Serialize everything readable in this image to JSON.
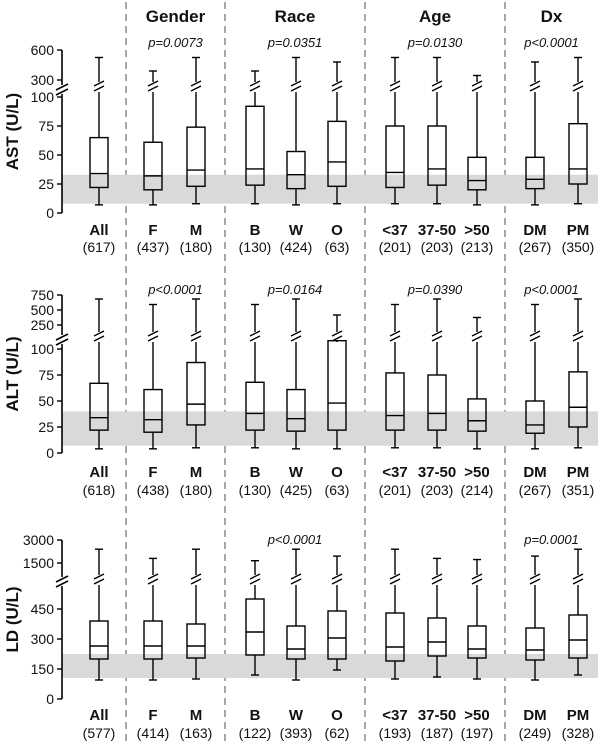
{
  "chart_data": {
    "type": "box",
    "group_headers": [
      "Gender",
      "Race",
      "Age",
      "Dx"
    ],
    "reference_band_color": "#d9d9d9",
    "panels": [
      {
        "ylabel": "AST (U/L)",
        "y_ticks_upper": [
          "600",
          "300"
        ],
        "y_ticks_lower": [
          "100",
          "75",
          "50",
          "25",
          "0"
        ],
        "y_lower_range": [
          0,
          100
        ],
        "y_upper_range": [
          200,
          600
        ],
        "reference_range": [
          8,
          33
        ],
        "pvalues": [
          "p=0.0073",
          "p=0.0351",
          "p=0.0130",
          "p<0.0001"
        ],
        "boxes": [
          {
            "label": "All",
            "n": "(617)",
            "whisker_low": 7,
            "q1": 22,
            "median": 34,
            "q3": 65,
            "whisker_high": 500
          },
          {
            "label": "F",
            "n": "(437)",
            "whisker_low": 7,
            "q1": 20,
            "median": 32,
            "q3": 61,
            "whisker_high": 320
          },
          {
            "label": "M",
            "n": "(180)",
            "whisker_low": 8,
            "q1": 23,
            "median": 37,
            "q3": 74,
            "whisker_high": 500
          },
          {
            "label": "B",
            "n": "(130)",
            "whisker_low": 8,
            "q1": 24,
            "median": 38,
            "q3": 92,
            "whisker_high": 320
          },
          {
            "label": "W",
            "n": "(424)",
            "whisker_low": 7,
            "q1": 21,
            "median": 33,
            "q3": 53,
            "whisker_high": 500
          },
          {
            "label": "O",
            "n": "(63)",
            "whisker_low": 8,
            "q1": 23,
            "median": 44,
            "q3": 79,
            "whisker_high": 440
          },
          {
            "label": "<37",
            "n": "(201)",
            "whisker_low": 8,
            "q1": 22,
            "median": 35,
            "q3": 75,
            "whisker_high": 500
          },
          {
            "label": "37-50",
            "n": "(203)",
            "whisker_low": 8,
            "q1": 24,
            "median": 38,
            "q3": 75,
            "whisker_high": 500
          },
          {
            "label": ">50",
            "n": "(213)",
            "whisker_low": 7,
            "q1": 20,
            "median": 28,
            "q3": 48,
            "whisker_high": 260
          },
          {
            "label": "DM",
            "n": "(267)",
            "whisker_low": 7,
            "q1": 21,
            "median": 29,
            "q3": 48,
            "whisker_high": 440
          },
          {
            "label": "PM",
            "n": "(350)",
            "whisker_low": 8,
            "q1": 25,
            "median": 38,
            "q3": 77,
            "whisker_high": 500
          }
        ]
      },
      {
        "ylabel": "ALT (U/L)",
        "y_ticks_upper": [
          "750",
          "500",
          "250"
        ],
        "y_ticks_lower": [
          "100",
          "75",
          "50",
          "25",
          "0"
        ],
        "y_lower_range": [
          0,
          100
        ],
        "y_upper_range": [
          150,
          750
        ],
        "reference_range": [
          7,
          40
        ],
        "pvalues": [
          "p<0.0001",
          "p=0.0164",
          "p=0.0390",
          "p<0.0001"
        ],
        "boxes": [
          {
            "label": "All",
            "n": "(618)",
            "whisker_low": 4,
            "q1": 22,
            "median": 34,
            "q3": 67,
            "whisker_high": 670
          },
          {
            "label": "F",
            "n": "(438)",
            "whisker_low": 4,
            "q1": 20,
            "median": 32,
            "q3": 61,
            "whisker_high": 560
          },
          {
            "label": "M",
            "n": "(180)",
            "whisker_low": 5,
            "q1": 27,
            "median": 47,
            "q3": 87,
            "whisker_high": 670
          },
          {
            "label": "B",
            "n": "(130)",
            "whisker_low": 5,
            "q1": 22,
            "median": 38,
            "q3": 68,
            "whisker_high": 560
          },
          {
            "label": "W",
            "n": "(425)",
            "whisker_low": 4,
            "q1": 21,
            "median": 33,
            "q3": 61,
            "whisker_high": 670
          },
          {
            "label": "O",
            "n": "(63)",
            "whisker_low": 4,
            "q1": 22,
            "median": 48,
            "q3": 108,
            "whisker_high": 350
          },
          {
            "label": "<37",
            "n": "(201)",
            "whisker_low": 5,
            "q1": 22,
            "median": 36,
            "q3": 77,
            "whisker_high": 560
          },
          {
            "label": "37-50",
            "n": "(203)",
            "whisker_low": 5,
            "q1": 22,
            "median": 38,
            "q3": 75,
            "whisker_high": 670
          },
          {
            "label": ">50",
            "n": "(214)",
            "whisker_low": 4,
            "q1": 21,
            "median": 31,
            "q3": 52,
            "whisker_high": 300
          },
          {
            "label": "DM",
            "n": "(267)",
            "whisker_low": 4,
            "q1": 19,
            "median": 27,
            "q3": 50,
            "whisker_high": 560
          },
          {
            "label": "PM",
            "n": "(351)",
            "whisker_low": 5,
            "q1": 25,
            "median": 44,
            "q3": 78,
            "whisker_high": 670
          }
        ]
      },
      {
        "ylabel": "LD (U/L)",
        "y_ticks_upper": [
          "3000",
          "1500"
        ],
        "y_ticks_lower": [
          "450",
          "300",
          "150",
          "0"
        ],
        "y_lower_range": [
          0,
          500
        ],
        "y_upper_range": [
          1000,
          3000
        ],
        "reference_range": [
          105,
          225
        ],
        "pvalues": [
          "",
          "p<0.0001",
          "",
          "p=0.0001"
        ],
        "boxes": [
          {
            "label": "All",
            "n": "(577)",
            "whisker_low": 95,
            "q1": 200,
            "median": 265,
            "q3": 390,
            "whisker_high": 2200
          },
          {
            "label": "F",
            "n": "(414)",
            "whisker_low": 95,
            "q1": 200,
            "median": 265,
            "q3": 390,
            "whisker_high": 1400
          },
          {
            "label": "M",
            "n": "(163)",
            "whisker_low": 100,
            "q1": 205,
            "median": 265,
            "q3": 375,
            "whisker_high": 2200
          },
          {
            "label": "B",
            "n": "(122)",
            "whisker_low": 120,
            "q1": 220,
            "median": 335,
            "q3": 500,
            "whisker_high": 1200
          },
          {
            "label": "W",
            "n": "(393)",
            "whisker_low": 95,
            "q1": 200,
            "median": 250,
            "q3": 365,
            "whisker_high": 2200
          },
          {
            "label": "O",
            "n": "(62)",
            "whisker_low": 145,
            "q1": 200,
            "median": 305,
            "q3": 440,
            "whisker_high": 1600
          },
          {
            "label": "<37",
            "n": "(193)",
            "whisker_low": 100,
            "q1": 190,
            "median": 260,
            "q3": 430,
            "whisker_high": 2200
          },
          {
            "label": "37-50",
            "n": "(187)",
            "whisker_low": 110,
            "q1": 215,
            "median": 285,
            "q3": 405,
            "whisker_high": 1400
          },
          {
            "label": ">50",
            "n": "(197)",
            "whisker_low": 100,
            "q1": 205,
            "median": 250,
            "q3": 365,
            "whisker_high": 1300
          },
          {
            "label": "DM",
            "n": "(249)",
            "whisker_low": 95,
            "q1": 195,
            "median": 245,
            "q3": 355,
            "whisker_high": 1600
          },
          {
            "label": "PM",
            "n": "(328)",
            "whisker_low": 120,
            "q1": 205,
            "median": 295,
            "q3": 420,
            "whisker_high": 2200
          }
        ]
      }
    ]
  }
}
